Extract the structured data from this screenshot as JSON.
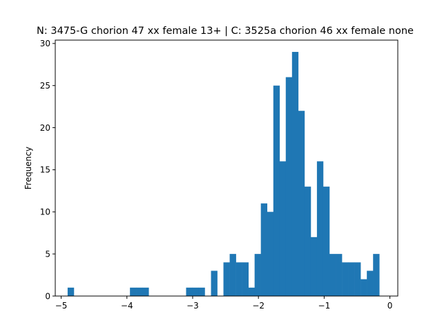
{
  "chart_data": {
    "type": "bar",
    "title": "N: 3475-G chorion 47 xx female 13+ | C: 3525a chorion 46 xx female none",
    "xlabel": "",
    "ylabel": "Frequency",
    "xlim": [
      -5.09,
      0.12
    ],
    "ylim": [
      0,
      30.4
    ],
    "grid": false,
    "legend": "none",
    "color": "#1f77b4",
    "bin_width": 0.0948,
    "x_ticks": [
      -5,
      -4,
      -3,
      -2,
      -1,
      0
    ],
    "x_tick_labels": [
      "−5",
      "−4",
      "−3",
      "−2",
      "−1",
      "0"
    ],
    "y_ticks": [
      0,
      5,
      10,
      15,
      20,
      25,
      30
    ],
    "y_tick_labels": [
      "0",
      "5",
      "10",
      "15",
      "20",
      "25",
      "30"
    ],
    "bins": [
      {
        "x": -4.902,
        "count": 1
      },
      {
        "x": -3.954,
        "count": 1
      },
      {
        "x": -3.859,
        "count": 1
      },
      {
        "x": -3.764,
        "count": 1
      },
      {
        "x": -3.1,
        "count": 1
      },
      {
        "x": -3.006,
        "count": 1
      },
      {
        "x": -2.911,
        "count": 1
      },
      {
        "x": -2.721,
        "count": 3
      },
      {
        "x": -2.532,
        "count": 4
      },
      {
        "x": -2.437,
        "count": 5
      },
      {
        "x": -2.342,
        "count": 4
      },
      {
        "x": -2.247,
        "count": 4
      },
      {
        "x": -2.152,
        "count": 1
      },
      {
        "x": -2.058,
        "count": 5
      },
      {
        "x": -1.963,
        "count": 11
      },
      {
        "x": -1.868,
        "count": 10
      },
      {
        "x": -1.773,
        "count": 25
      },
      {
        "x": -1.678,
        "count": 16
      },
      {
        "x": -1.584,
        "count": 26
      },
      {
        "x": -1.489,
        "count": 29
      },
      {
        "x": -1.394,
        "count": 22
      },
      {
        "x": -1.299,
        "count": 13
      },
      {
        "x": -1.204,
        "count": 7
      },
      {
        "x": -1.11,
        "count": 16
      },
      {
        "x": -1.015,
        "count": 13
      },
      {
        "x": -0.92,
        "count": 5
      },
      {
        "x": -0.825,
        "count": 5
      },
      {
        "x": -0.73,
        "count": 4
      },
      {
        "x": -0.636,
        "count": 4
      },
      {
        "x": -0.541,
        "count": 4
      },
      {
        "x": -0.446,
        "count": 2
      },
      {
        "x": -0.351,
        "count": 3
      },
      {
        "x": -0.256,
        "count": 5
      }
    ]
  }
}
